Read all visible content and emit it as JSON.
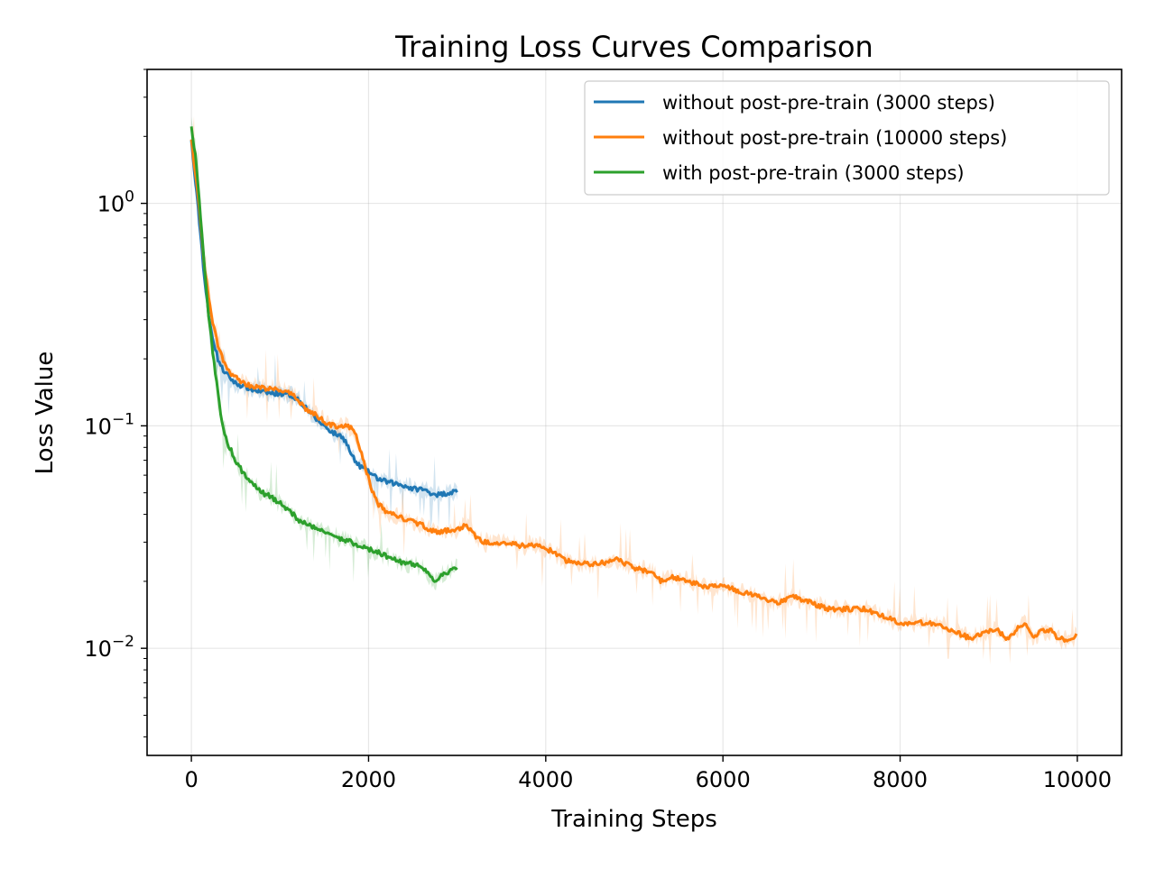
{
  "chart_data": {
    "type": "line",
    "title": "Training Loss Curves Comparison",
    "xlabel": "Training Steps",
    "ylabel": "Loss Value",
    "xlim": [
      -500,
      10500
    ],
    "ylim": [
      0.0033,
      4.0
    ],
    "yscale": "log",
    "grid": true,
    "legend_position": "top-right",
    "x_ticks": [
      0,
      2000,
      4000,
      6000,
      8000,
      10000
    ],
    "x_tick_labels": [
      "0",
      "2000",
      "4000",
      "6000",
      "8000",
      "10000"
    ],
    "y_ticks": [
      1.0,
      0.1,
      0.01
    ],
    "y_tick_labels": [
      {
        "base": "10",
        "exp": "0"
      },
      {
        "base": "10",
        "exp": "−1"
      },
      {
        "base": "10",
        "exp": "−2"
      }
    ],
    "series": [
      {
        "name": "without post-pre-train (3000 steps)",
        "color": "#1f77b4",
        "x": [
          0,
          50,
          100,
          150,
          200,
          250,
          300,
          350,
          400,
          500,
          600,
          700,
          800,
          900,
          1000,
          1100,
          1200,
          1300,
          1400,
          1500,
          1600,
          1650,
          1700,
          1750,
          1800,
          1850,
          1900,
          2000,
          2100,
          2200,
          2300,
          2400,
          2500,
          2600,
          2700,
          2800,
          2900,
          3000
        ],
        "y": [
          1.9,
          1.2,
          0.75,
          0.45,
          0.3,
          0.24,
          0.2,
          0.18,
          0.17,
          0.155,
          0.15,
          0.145,
          0.142,
          0.14,
          0.14,
          0.138,
          0.132,
          0.12,
          0.108,
          0.1,
          0.093,
          0.091,
          0.09,
          0.084,
          0.075,
          0.069,
          0.066,
          0.062,
          0.058,
          0.056,
          0.055,
          0.054,
          0.052,
          0.052,
          0.05,
          0.049,
          0.05,
          0.051
        ]
      },
      {
        "name": "without post-pre-train (10000 steps)",
        "color": "#ff7f0e",
        "x": [
          0,
          50,
          100,
          150,
          200,
          250,
          300,
          350,
          400,
          500,
          600,
          700,
          800,
          900,
          1000,
          1100,
          1200,
          1300,
          1400,
          1500,
          1600,
          1700,
          1800,
          1850,
          1900,
          1950,
          2000,
          2050,
          2100,
          2200,
          2300,
          2400,
          2500,
          2600,
          2700,
          2800,
          2900,
          3000,
          3100,
          3200,
          3300,
          3500,
          3700,
          3900,
          4000,
          4100,
          4200,
          4400,
          4600,
          4800,
          5000,
          5200,
          5300,
          5400,
          5600,
          5800,
          6000,
          6200,
          6400,
          6600,
          6800,
          7000,
          7200,
          7400,
          7600,
          7800,
          8000,
          8200,
          8400,
          8600,
          8800,
          9000,
          9100,
          9200,
          9300,
          9400,
          9500,
          9600,
          9700,
          9800,
          9900,
          9950,
          10000
        ],
        "y": [
          1.95,
          1.3,
          0.85,
          0.52,
          0.36,
          0.28,
          0.23,
          0.2,
          0.18,
          0.165,
          0.155,
          0.15,
          0.148,
          0.146,
          0.145,
          0.14,
          0.132,
          0.118,
          0.112,
          0.105,
          0.1,
          0.1,
          0.098,
          0.092,
          0.08,
          0.068,
          0.058,
          0.05,
          0.045,
          0.041,
          0.04,
          0.038,
          0.037,
          0.036,
          0.034,
          0.033,
          0.034,
          0.034,
          0.036,
          0.032,
          0.03,
          0.03,
          0.029,
          0.029,
          0.028,
          0.027,
          0.025,
          0.024,
          0.024,
          0.025,
          0.023,
          0.022,
          0.02,
          0.021,
          0.02,
          0.019,
          0.019,
          0.018,
          0.017,
          0.016,
          0.017,
          0.016,
          0.015,
          0.015,
          0.015,
          0.014,
          0.013,
          0.013,
          0.013,
          0.012,
          0.011,
          0.012,
          0.012,
          0.011,
          0.012,
          0.013,
          0.011,
          0.012,
          0.012,
          0.011,
          0.011,
          0.011,
          0.012
        ]
      },
      {
        "name": "with post-pre-train (3000 steps)",
        "color": "#2ca02c",
        "x": [
          0,
          50,
          100,
          150,
          200,
          250,
          300,
          350,
          400,
          500,
          600,
          700,
          800,
          900,
          1000,
          1100,
          1200,
          1300,
          1400,
          1500,
          1600,
          1700,
          1800,
          1900,
          2000,
          2100,
          2200,
          2300,
          2400,
          2500,
          2600,
          2700,
          2750,
          2800,
          2900,
          3000
        ],
        "y": [
          2.2,
          1.6,
          0.9,
          0.5,
          0.3,
          0.2,
          0.14,
          0.1,
          0.085,
          0.07,
          0.06,
          0.055,
          0.05,
          0.048,
          0.045,
          0.042,
          0.038,
          0.036,
          0.035,
          0.034,
          0.032,
          0.031,
          0.03,
          0.029,
          0.028,
          0.027,
          0.026,
          0.025,
          0.024,
          0.024,
          0.023,
          0.021,
          0.02,
          0.021,
          0.022,
          0.023
        ]
      }
    ]
  }
}
